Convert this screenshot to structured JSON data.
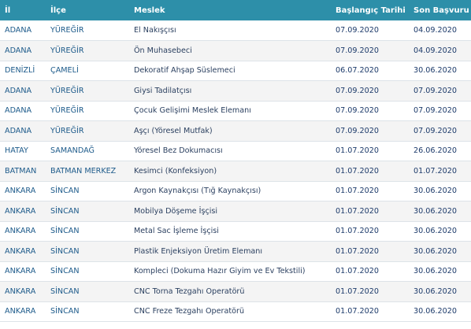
{
  "table": {
    "headers": [
      "İl",
      "İlçe",
      "Meslek",
      "Başlangıç Tarihi",
      "Son Başvuru"
    ],
    "rows": [
      [
        "ADANA",
        "YÜREĞİR",
        "El Nakışçısı",
        "07.09.2020",
        "04.09.2020"
      ],
      [
        "ADANA",
        "YÜREĞİR",
        "Ön Muhasebeci",
        "07.09.2020",
        "04.09.2020"
      ],
      [
        "DENİZLİ",
        "ÇAMELİ",
        "Dekoratif Ahşap Süslemeci",
        "06.07.2020",
        "30.06.2020"
      ],
      [
        "ADANA",
        "YÜREĞİR",
        "Giysi Tadilatçısı",
        "07.09.2020",
        "07.09.2020"
      ],
      [
        "ADANA",
        "YÜREĞİR",
        "Çocuk Gelişimi Meslek Elemanı",
        "07.09.2020",
        "07.09.2020"
      ],
      [
        "ADANA",
        "YÜREĞİR",
        "Aşçı (Yöresel Mutfak)",
        "07.09.2020",
        "07.09.2020"
      ],
      [
        "HATAY",
        "SAMANDAĞ",
        "Yöresel Bez Dokumacısı",
        "01.07.2020",
        "26.06.2020"
      ],
      [
        "BATMAN",
        "BATMAN MERKEZ",
        "Kesimci (Konfeksiyon)",
        "01.07.2020",
        "01.07.2020"
      ],
      [
        "ANKARA",
        "SİNCAN",
        "Argon Kaynakçısı (Tığ Kaynakçısı)",
        "01.07.2020",
        "30.06.2020"
      ],
      [
        "ANKARA",
        "SİNCAN",
        "Mobilya Döşeme İşçisi",
        "01.07.2020",
        "30.06.2020"
      ],
      [
        "ANKARA",
        "SİNCAN",
        "Metal Sac İşleme İşçisi",
        "01.07.2020",
        "30.06.2020"
      ],
      [
        "ANKARA",
        "SİNCAN",
        "Plastik Enjeksiyon Üretim Elemanı",
        "01.07.2020",
        "30.06.2020"
      ],
      [
        "ANKARA",
        "SİNCAN",
        "Kompleci (Dokuma Hazır Giyim ve Ev Tekstili)",
        "01.07.2020",
        "30.06.2020"
      ],
      [
        "ANKARA",
        "SİNCAN",
        "CNC Torna Tezgahı Operatörü",
        "01.07.2020",
        "30.06.2020"
      ],
      [
        "ANKARA",
        "SİNCAN",
        "CNC Freze Tezgahı Operatörü",
        "01.07.2020",
        "30.06.2020"
      ]
    ]
  },
  "colors": {
    "header_bg": "#2d8fa9",
    "header_text": "#ffffff",
    "row_alt_bg": "#f4f4f4",
    "cell_text": "#1c5a8a"
  }
}
